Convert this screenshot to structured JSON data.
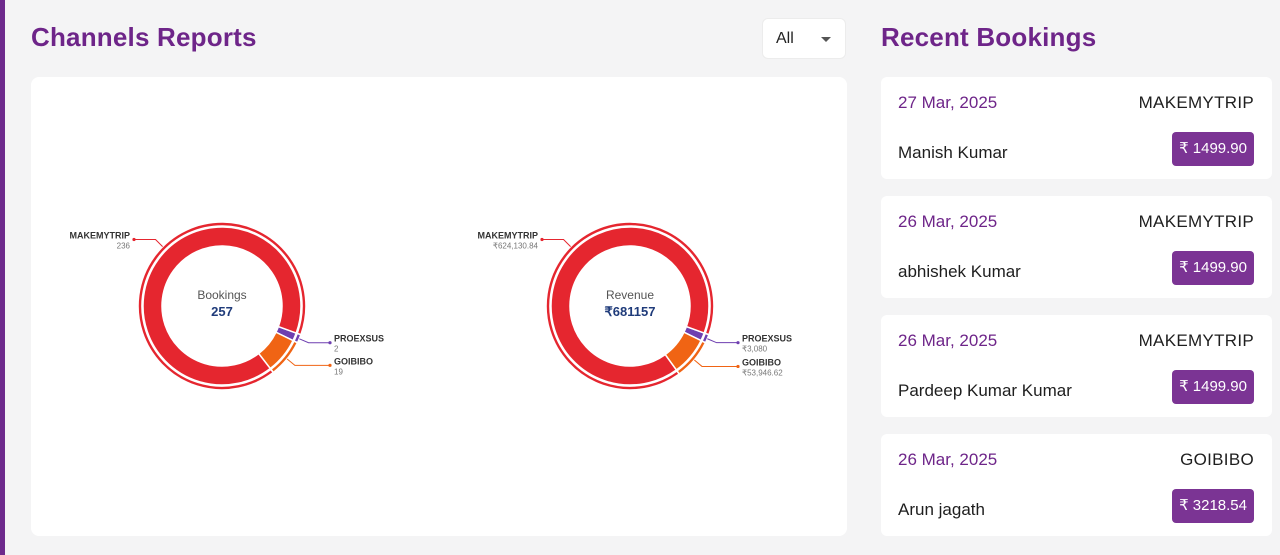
{
  "page": {
    "channels_title": "Channels Reports",
    "recent_title": "Recent Bookings",
    "filter": {
      "selected": "All"
    }
  },
  "colors": {
    "brand": "#6e2589",
    "makemytrip": "#e5262f",
    "goibibo": "#f06414",
    "proexsus": "#6e3fb0",
    "amount_badge": "#7b3494"
  },
  "chart_data": [
    {
      "type": "pie",
      "variant": "donut",
      "center_label": "Bookings",
      "center_value": "257",
      "slices": [
        {
          "name": "MAKEMYTRIP",
          "value": 236,
          "value_label": "236",
          "color": "#e5262f"
        },
        {
          "name": "GOIBIBO",
          "value": 19,
          "value_label": "19",
          "color": "#f06414"
        },
        {
          "name": "PROEXSUS",
          "value": 2,
          "value_label": "2",
          "color": "#6e3fb0"
        }
      ]
    },
    {
      "type": "pie",
      "variant": "donut",
      "center_label": "Revenue",
      "center_value": "₹681157",
      "slices": [
        {
          "name": "MAKEMYTRIP",
          "value": 624130.84,
          "value_label": "₹624,130.84",
          "color": "#e5262f"
        },
        {
          "name": "GOIBIBO",
          "value": 53946.62,
          "value_label": "₹53,946.62",
          "color": "#f06414"
        },
        {
          "name": "PROEXSUS",
          "value": 3080,
          "value_label": "₹3,080",
          "color": "#6e3fb0"
        }
      ]
    }
  ],
  "bookings": [
    {
      "date": "27 Mar, 2025",
      "channel": "MAKEMYTRIP",
      "name": "Manish Kumar",
      "amount": "₹ 1499.90"
    },
    {
      "date": "26 Mar, 2025",
      "channel": "MAKEMYTRIP",
      "name": "abhishek Kumar",
      "amount": "₹ 1499.90"
    },
    {
      "date": "26 Mar, 2025",
      "channel": "MAKEMYTRIP",
      "name": "Pardeep Kumar Kumar",
      "amount": "₹ 1499.90"
    },
    {
      "date": "26 Mar, 2025",
      "channel": "GOIBIBO",
      "name": "Arun jagath",
      "amount": "₹ 3218.54"
    }
  ]
}
